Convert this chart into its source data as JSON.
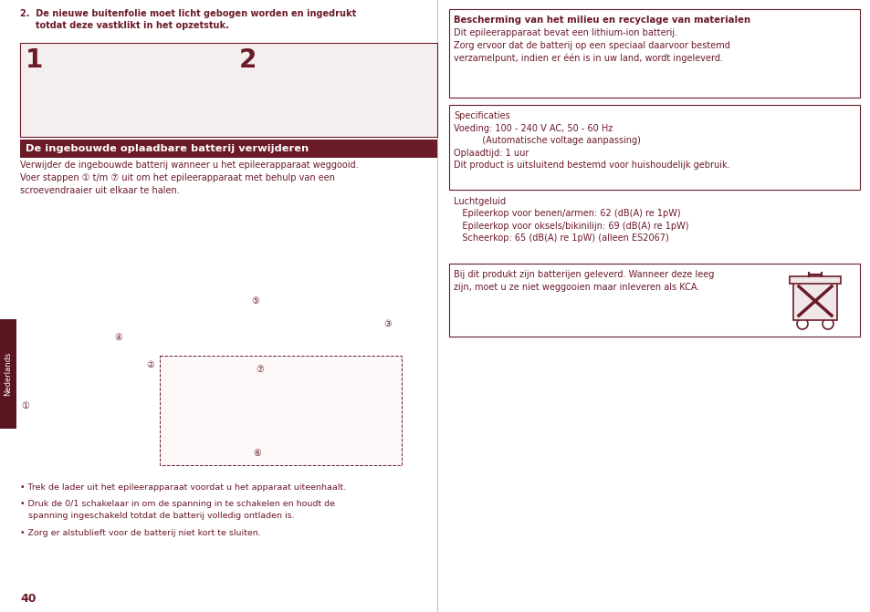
{
  "bg_color": "#ffffff",
  "text_color": "#6B1A28",
  "page_number": "40",
  "left_col": {
    "step2_text": "2.  De nieuwe buitenfolie moet licht gebogen worden en ingedrukt\n     totdat deze vastklikt in het opzetstuk.",
    "section_title": "De ingebouwde oplaadbare batterij verwijderen",
    "body_text": "Verwijder de ingebouwde batterij wanneer u het epileerapparaat weggooid.\nVoer stappen ① t/m ⑦ uit om het epileerapparaat met behulp van een\nscroevendraaier uit elkaar te halen.",
    "bullets": [
      "• Trek de lader uit het epileerapparaat voordat u het apparaat uiteenhaalt.",
      "• Druk de 0/1 schakelaar in om de spanning in te schakelen en houdt de\n   spanning ingeschakeld totdat de batterij volledig ontladen is.",
      "• Zorg er alstublieft voor de batterij niet kort te sluiten."
    ]
  },
  "right_col": {
    "box1_title": "Bescherming van het milieu en recyclage van materialen",
    "box1_lines": "Dit epileerapparaat bevat een lithium-ion batterij.\nZorg ervoor dat de batterij op een speciaal daarvoor bestemd\nverzamelpunt, indien er één is in uw land, wordt ingeleverd.",
    "box2_lines": "Specificaties\nVoeding: 100 - 240 V AC, 50 - 60 Hz\n          (Automatische voltage aanpassing)\nOplaadtijd: 1 uur\nDit product is uitsluitend bestemd voor huishoudelijk gebruik.",
    "section_lucht": "Luchtgeluid",
    "lucht_lines": "   Epileerkop voor benen/armen: 62 (dB(A) re 1pW)\n   Epileerkop voor oksels/bikinilijn: 69 (dB(A) re 1pW)\n   Scheerkop: 65 (dB(A) re 1pW) (alleen ES2067)",
    "box3_text": "Bij dit produkt zijn batterijen geleverd. Wanneer deze leeg\nzijn, moet u ze niet weggooien maar inleveren als KCA."
  },
  "sidebar_text": "Nederlands",
  "title_bar_color": "#6B1A28",
  "sidebar_color": "#5a1520"
}
